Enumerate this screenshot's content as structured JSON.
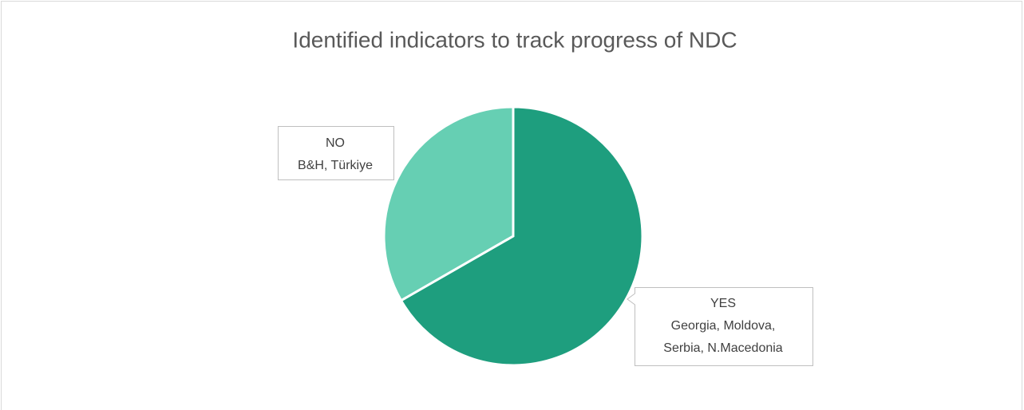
{
  "chart_data": {
    "type": "pie",
    "title": "Identified indicators to track progress of NDC",
    "categories": [
      "YES",
      "NO"
    ],
    "details": [
      [
        "Georgia, Moldova,",
        "Serbia, N.Macedonia"
      ],
      [
        "B&H, Türkiye"
      ]
    ],
    "values": [
      66.7,
      33.3
    ],
    "colors": [
      "#1e9e7e",
      "#66cfb3"
    ]
  }
}
